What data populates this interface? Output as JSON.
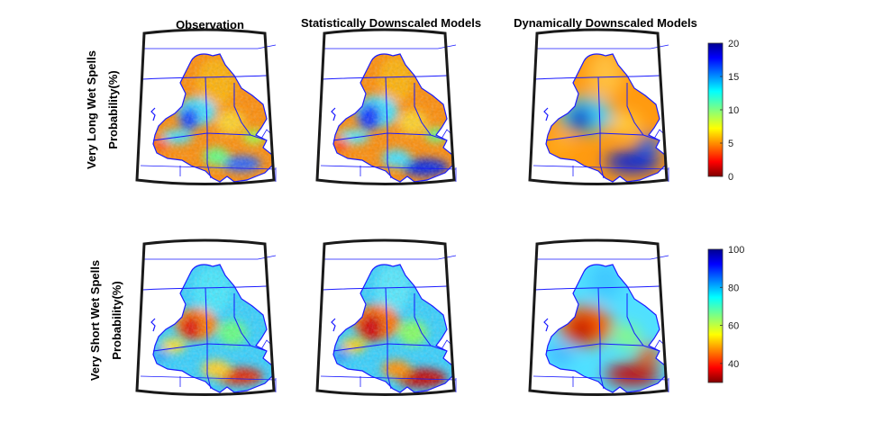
{
  "figure": {
    "columns": [
      {
        "id": "observation",
        "label": "Observation"
      },
      {
        "id": "statistical",
        "label": "Statistically Downscaled Models"
      },
      {
        "id": "dynamical",
        "label": "Dynamically Downscaled Models"
      }
    ],
    "rows": [
      {
        "id": "long",
        "title_line1": "Very Long Wet Spells",
        "title_line2": "Probability(%)",
        "colorbar": {
          "min": 0,
          "max": 20,
          "ticks": [
            "20",
            "15",
            "10",
            "5",
            "0"
          ],
          "colormap": "jet"
        }
      },
      {
        "id": "short",
        "title_line1": "Very Short Wet Spells",
        "title_line2": "Probability(%)",
        "colorbar": {
          "min": 30,
          "max": 100,
          "ticks": [
            "100",
            "80",
            "60",
            "40"
          ],
          "colormap": "jet"
        }
      }
    ]
  },
  "colors": {
    "jet_low": "#800000",
    "jet_red": "#ff0000",
    "jet_yellow": "#ffff00",
    "jet_cyan": "#00ffff",
    "jet_blue": "#0000ff",
    "jet_high": "#000090",
    "boundary_lines": "#1a1aff",
    "map_frame": "#1a1a1a"
  }
}
